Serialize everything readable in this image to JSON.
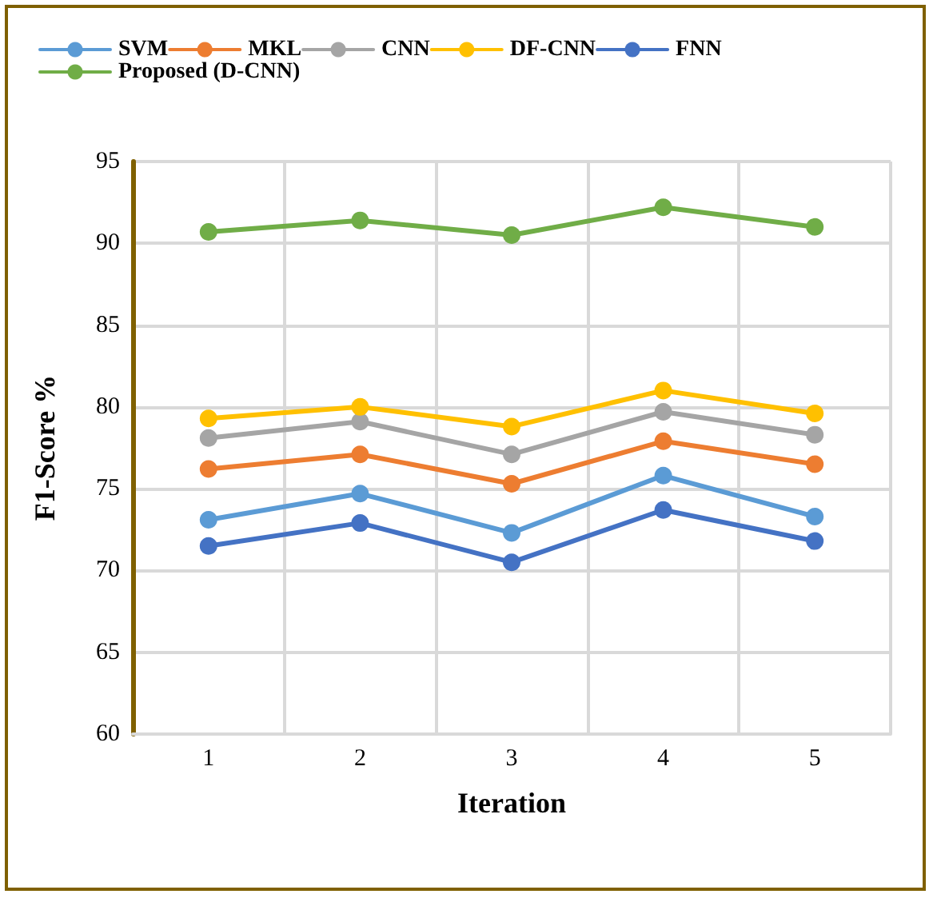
{
  "chart_data": {
    "type": "line",
    "xlabel": "Iteration",
    "ylabel": "F1-Score %",
    "categories": [
      "1",
      "2",
      "3",
      "4",
      "5"
    ],
    "series": [
      {
        "name": "SVM",
        "color": "#5b9bd5",
        "values": [
          73.1,
          74.7,
          72.3,
          75.8,
          73.3
        ]
      },
      {
        "name": "MKL",
        "color": "#ed7d31",
        "values": [
          76.2,
          77.1,
          75.3,
          77.9,
          76.5
        ]
      },
      {
        "name": "CNN",
        "color": "#a5a5a5",
        "values": [
          78.1,
          79.1,
          77.1,
          79.7,
          78.3
        ]
      },
      {
        "name": "DF-CNN",
        "color": "#ffc000",
        "values": [
          79.3,
          80.0,
          78.8,
          81.0,
          79.6
        ]
      },
      {
        "name": "FNN",
        "color": "#4472c4",
        "values": [
          71.5,
          72.9,
          70.5,
          73.7,
          71.8
        ]
      },
      {
        "name": "Proposed (D-CNN)",
        "color": "#70ad47",
        "values": [
          90.7,
          91.4,
          90.5,
          92.2,
          91.0
        ]
      }
    ],
    "ylim": [
      60,
      95
    ],
    "yticks": [
      60,
      65,
      70,
      75,
      80,
      85,
      90,
      95
    ],
    "grid": true,
    "legend": "top",
    "marker": "circle",
    "line_style": "solid"
  }
}
